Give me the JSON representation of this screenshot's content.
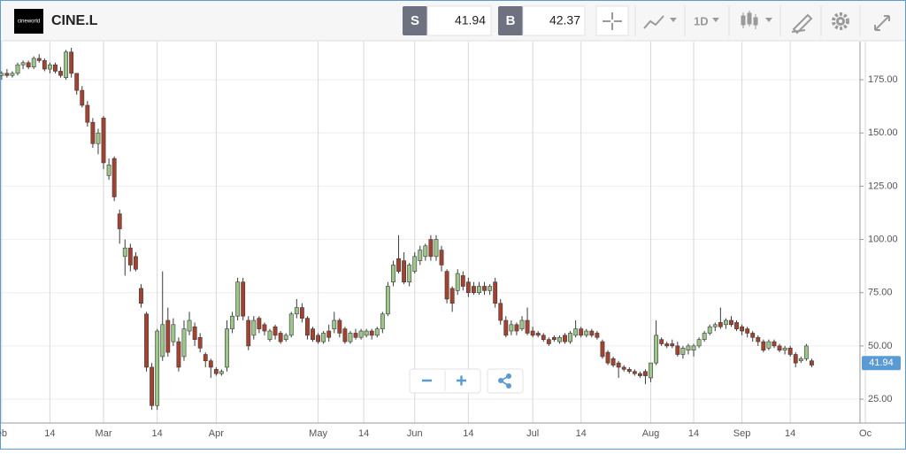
{
  "toolbar": {
    "logo": "cineworld",
    "symbol": "CINE.L",
    "sell_label": "S",
    "sell_price": 41.94,
    "buy_label": "B",
    "buy_price": 42.37,
    "interval": "1D"
  },
  "chart_data": {
    "type": "candlestick",
    "up_color": "#9dc78a",
    "down_color": "#a5412f",
    "outline_color": "#3a3a3a",
    "grid": true,
    "ylim": [
      13.8,
      192.9
    ],
    "yticks": [
      {
        "value": 25,
        "label": "25.00"
      },
      {
        "value": 50,
        "label": "50.00"
      },
      {
        "value": 75,
        "label": "75.00"
      },
      {
        "value": 100,
        "label": "100.00"
      },
      {
        "value": 125,
        "label": "125.00"
      },
      {
        "value": 150,
        "label": "150.00"
      },
      {
        "value": 175,
        "label": "175.00"
      }
    ],
    "xlim": [
      -0.3,
      160
    ],
    "xticks": [
      {
        "value": 0,
        "label": "eb"
      },
      {
        "value": 9,
        "label": "14"
      },
      {
        "value": 19,
        "label": "Mar"
      },
      {
        "value": 29,
        "label": "14"
      },
      {
        "value": 40,
        "label": "Apr"
      },
      {
        "value": 59,
        "label": "May"
      },
      {
        "value": 67.5,
        "label": "14"
      },
      {
        "value": 77,
        "label": "Jun"
      },
      {
        "value": 87,
        "label": "14"
      },
      {
        "value": 99,
        "label": "Jul"
      },
      {
        "value": 108,
        "label": "14"
      },
      {
        "value": 121,
        "label": "Aug"
      },
      {
        "value": 129,
        "label": "14"
      },
      {
        "value": 138,
        "label": "Sep"
      },
      {
        "value": 147,
        "label": "14"
      },
      {
        "value": 161,
        "label": "Oc"
      }
    ],
    "x": [
      0,
      1,
      2,
      3,
      4,
      5,
      6,
      7,
      8,
      9,
      10,
      11,
      12,
      13,
      14,
      15,
      16,
      17,
      18,
      19,
      20,
      21,
      22,
      23,
      24,
      25,
      26,
      27,
      28,
      29,
      30,
      31,
      32,
      33,
      34,
      35,
      36,
      37,
      38,
      39,
      40,
      41,
      42,
      43,
      44,
      45,
      46,
      47,
      48,
      49,
      50,
      51,
      52,
      53,
      54,
      55,
      56,
      57,
      58,
      59,
      60,
      61,
      62,
      63,
      64,
      65,
      66,
      67,
      68,
      69,
      70,
      71,
      72,
      73,
      74,
      75,
      76,
      77,
      78,
      79,
      80,
      81,
      82,
      83,
      84,
      85,
      86,
      87,
      88,
      89,
      90,
      91,
      92,
      93,
      94,
      95,
      96,
      97,
      98,
      99,
      100,
      101,
      102,
      103,
      104,
      105,
      106,
      107,
      108,
      109,
      110,
      111,
      112,
      113,
      114,
      115,
      116,
      117,
      118,
      119,
      120,
      121,
      122,
      123,
      124,
      125,
      126,
      127,
      128,
      129,
      130,
      131,
      132,
      133,
      134,
      135,
      136,
      137,
      138,
      139,
      140,
      141,
      142,
      143,
      144,
      145,
      146,
      147,
      148,
      149,
      150,
      151
    ],
    "open": [
      177,
      178,
      177,
      178,
      182,
      183,
      181,
      185,
      184,
      180,
      182,
      179,
      176,
      188,
      178,
      170,
      163,
      155,
      145,
      157,
      130,
      138,
      112,
      92,
      96,
      92,
      77,
      65,
      40,
      22,
      45,
      62,
      52,
      52,
      45,
      57,
      59,
      54,
      46,
      43,
      39,
      37,
      40,
      58,
      64,
      80,
      62,
      55,
      63,
      60,
      53,
      59,
      56,
      53,
      55,
      65,
      68,
      63,
      58,
      55,
      52,
      57,
      58,
      62,
      58,
      52,
      56,
      54,
      55,
      57,
      55,
      58,
      65,
      80,
      91,
      90,
      80,
      85,
      90,
      92,
      100,
      92,
      95,
      85,
      77,
      76,
      83,
      80,
      78,
      75,
      78,
      76,
      80,
      70,
      62,
      57,
      60,
      58,
      62,
      57,
      56,
      55,
      53,
      54,
      52,
      55,
      52,
      55,
      58,
      55,
      57,
      56,
      52,
      47,
      44,
      42,
      40,
      39,
      38,
      37,
      38,
      35,
      42,
      53,
      51,
      51,
      50,
      46,
      48,
      48,
      50,
      53,
      56,
      59,
      61,
      60,
      62,
      61,
      59,
      58,
      56,
      54,
      52,
      49,
      52,
      50,
      48,
      49,
      46,
      43,
      44,
      43
    ],
    "high": [
      179,
      180,
      179,
      183,
      184,
      184,
      186,
      187,
      185,
      183,
      183,
      181,
      189,
      190,
      178,
      172,
      165,
      157,
      152,
      158,
      138,
      139,
      114,
      100,
      98,
      94,
      79,
      66,
      42,
      58,
      85,
      68,
      63,
      54,
      62,
      66,
      61,
      56,
      47,
      44,
      40,
      39,
      62,
      66,
      82,
      82,
      64,
      64,
      64,
      61,
      58,
      60,
      57,
      56,
      66,
      72,
      70,
      64,
      59,
      56,
      57,
      60,
      66,
      63,
      59,
      57,
      58,
      58,
      58,
      58,
      59,
      66,
      80,
      90,
      102,
      94,
      89,
      94,
      97,
      98,
      102,
      102,
      97,
      86,
      78,
      86,
      85,
      82,
      80,
      80,
      80,
      79,
      82,
      72,
      64,
      62,
      61,
      64,
      68,
      59,
      57,
      56,
      54,
      55,
      55,
      56,
      57,
      62,
      59,
      58,
      58,
      57,
      53,
      48,
      45,
      43,
      41,
      40,
      39,
      38,
      39,
      42,
      62,
      54,
      52,
      53,
      52,
      50,
      51,
      51,
      54,
      57,
      60,
      61,
      68,
      63,
      64,
      62,
      60,
      59,
      57,
      55,
      53,
      53,
      53,
      51,
      50,
      50,
      47,
      45,
      51,
      44
    ],
    "low": [
      175,
      176,
      176,
      177,
      180,
      180,
      180,
      183,
      179,
      178,
      178,
      176,
      175,
      176,
      168,
      162,
      153,
      143,
      140,
      133,
      128,
      118,
      98,
      83,
      85,
      85,
      68,
      38,
      20,
      20,
      43,
      45,
      50,
      38,
      43,
      55,
      50,
      47,
      40,
      35,
      36,
      36,
      38,
      56,
      62,
      62,
      48,
      53,
      56,
      55,
      52,
      53,
      51,
      52,
      54,
      63,
      61,
      53,
      52,
      51,
      51,
      52,
      56,
      54,
      51,
      51,
      53,
      53,
      54,
      53,
      54,
      56,
      64,
      78,
      84,
      79,
      78,
      84,
      88,
      90,
      90,
      90,
      85,
      70,
      66,
      74,
      76,
      73,
      74,
      74,
      74,
      74,
      68,
      60,
      54,
      55,
      55,
      57,
      55,
      54,
      54,
      52,
      50,
      52,
      51,
      51,
      51,
      54,
      54,
      54,
      54,
      53,
      44,
      41,
      40,
      35,
      38,
      37,
      36,
      35,
      32,
      33,
      41,
      50,
      49,
      49,
      45,
      44,
      46,
      45,
      49,
      52,
      55,
      57,
      58,
      58,
      59,
      57,
      55,
      54,
      52,
      50,
      47,
      48,
      49,
      47,
      46,
      45,
      40,
      42,
      43,
      40
    ],
    "close": [
      178,
      177,
      178,
      182,
      183,
      181,
      185,
      184,
      180,
      182,
      179,
      177,
      188,
      178,
      170,
      163,
      155,
      145,
      150,
      136,
      135,
      120,
      105,
      96,
      88,
      86,
      70,
      40,
      22,
      57,
      60,
      47,
      60,
      40,
      58,
      62,
      53,
      49,
      43,
      40,
      37,
      38,
      58,
      64,
      80,
      64,
      50,
      62,
      58,
      57,
      57,
      55,
      52,
      55,
      65,
      68,
      63,
      55,
      53,
      52,
      56,
      54,
      62,
      56,
      52,
      56,
      54,
      57,
      57,
      55,
      58,
      65,
      78,
      88,
      85,
      80,
      88,
      92,
      95,
      97,
      92,
      100,
      88,
      72,
      70,
      84,
      78,
      75,
      75,
      78,
      76,
      78,
      70,
      62,
      55,
      60,
      57,
      62,
      56,
      55,
      55,
      53,
      51,
      53,
      54,
      52,
      56,
      58,
      55,
      57,
      55,
      54,
      45,
      42,
      41,
      40,
      39,
      38,
      37,
      36,
      36,
      42,
      55,
      51,
      50,
      50,
      46,
      49,
      50,
      50,
      53,
      56,
      59,
      60,
      59,
      62,
      60,
      58,
      57,
      56,
      54,
      52,
      48,
      52,
      50,
      48,
      49,
      46,
      42,
      44,
      50,
      41
    ]
  }
}
